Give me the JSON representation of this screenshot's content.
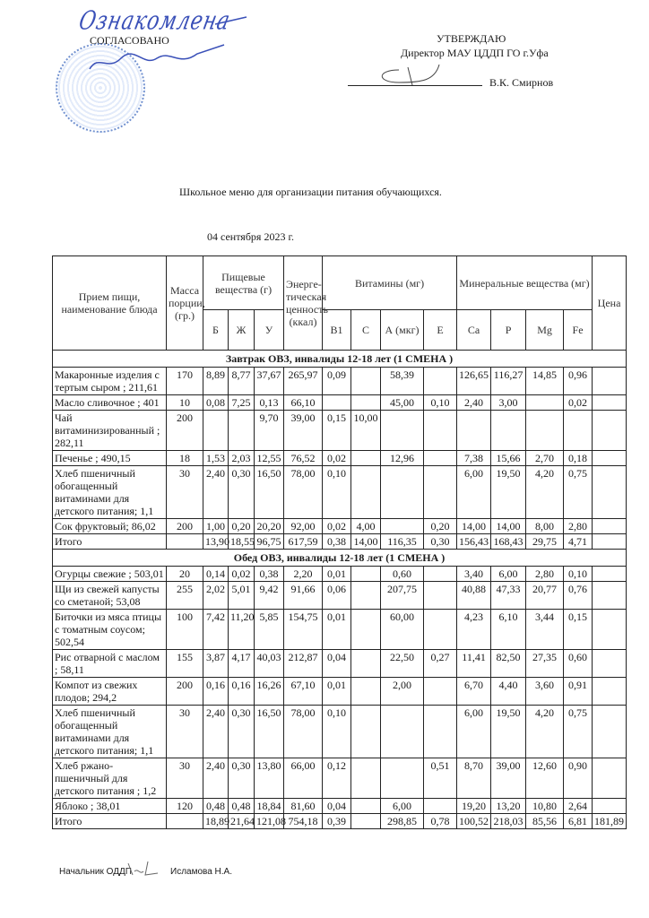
{
  "header": {
    "agreed_label": "СОГЛАСОВАНО",
    "agreed_signature_text": "Ознакомлена",
    "approve_label": "УТВЕРЖДАЮ",
    "approver_position": "Директор МАУ ЦДДП ГО г.Уфа",
    "approver_name": "В.К. Смирнов"
  },
  "title": "Школьное меню для организации питания обучающихся.",
  "date": "04 сентября 2023 г.",
  "table": {
    "headers": {
      "dish": "Прием пищи, наименование блюда",
      "mass": "Масса порции, (гр.)",
      "nutrients": "Пищевые вещества (г)",
      "energy": "Энерге-тическая ценность (ккал)",
      "vitamins": "Витамины (мг)",
      "minerals": "Минеральные вещества (мг)",
      "price": "Цена",
      "sub": [
        "Б",
        "Ж",
        "У",
        "B1",
        "C",
        "А (мкг)",
        "E",
        "Ca",
        "P",
        "Mg",
        "Fe"
      ]
    },
    "sections": [
      {
        "title": "Завтрак ОВЗ, инвалиды 12-18 лет (1 СМЕНА )",
        "rows": [
          [
            "Макаронные изделия с тертым сыром ; 211,61",
            "170",
            "8,89",
            "8,77",
            "37,67",
            "265,97",
            "0,09",
            "",
            "58,39",
            "",
            "126,65",
            "116,27",
            "14,85",
            "0,96",
            ""
          ],
          [
            "Масло сливочное ; 401",
            "10",
            "0,08",
            "7,25",
            "0,13",
            "66,10",
            "",
            "",
            "45,00",
            "0,10",
            "2,40",
            "3,00",
            "",
            "0,02",
            ""
          ],
          [
            "Чай витаминизированный ; 282,11",
            "200",
            "",
            "",
            "9,70",
            "39,00",
            "0,15",
            "10,00",
            "",
            "",
            "",
            "",
            "",
            "",
            ""
          ],
          [
            "Печенье ; 490,15",
            "18",
            "1,53",
            "2,03",
            "12,55",
            "76,52",
            "0,02",
            "",
            "12,96",
            "",
            "7,38",
            "15,66",
            "2,70",
            "0,18",
            ""
          ],
          [
            "Хлеб пшеничный обогащенный витаминами для детского питания; 1,1",
            "30",
            "2,40",
            "0,30",
            "16,50",
            "78,00",
            "0,10",
            "",
            "",
            "",
            "6,00",
            "19,50",
            "4,20",
            "0,75",
            ""
          ],
          [
            "Сок фруктовый; 86,02",
            "200",
            "1,00",
            "0,20",
            "20,20",
            "92,00",
            "0,02",
            "4,00",
            "",
            "0,20",
            "14,00",
            "14,00",
            "8,00",
            "2,80",
            ""
          ],
          [
            "Итого",
            "",
            "13,90",
            "18,55",
            "96,75",
            "617,59",
            "0,38",
            "14,00",
            "116,35",
            "0,30",
            "156,43",
            "168,43",
            "29,75",
            "4,71",
            ""
          ]
        ]
      },
      {
        "title": "Обед ОВЗ, инвалиды 12-18 лет (1 СМЕНА )",
        "rows": [
          [
            "Огурцы свежие ; 503,01",
            "20",
            "0,14",
            "0,02",
            "0,38",
            "2,20",
            "0,01",
            "",
            "0,60",
            "",
            "3,40",
            "6,00",
            "2,80",
            "0,10",
            ""
          ],
          [
            "Щи из свежей капусты со сметаной; 53,08",
            "255",
            "2,02",
            "5,01",
            "9,42",
            "91,66",
            "0,06",
            "",
            "207,75",
            "",
            "40,88",
            "47,33",
            "20,77",
            "0,76",
            ""
          ],
          [
            "Биточки из мяса птицы  с томатным соусом; 502,54",
            "100",
            "7,42",
            "11,20",
            "5,85",
            "154,75",
            "0,01",
            "",
            "60,00",
            "",
            "4,23",
            "6,10",
            "3,44",
            "0,15",
            ""
          ],
          [
            "Рис отварной с маслом ; 58,11",
            "155",
            "3,87",
            "4,17",
            "40,03",
            "212,87",
            "0,04",
            "",
            "22,50",
            "0,27",
            "11,41",
            "82,50",
            "27,35",
            "0,60",
            ""
          ],
          [
            "Компот из свежих плодов; 294,2",
            "200",
            "0,16",
            "0,16",
            "16,26",
            "67,10",
            "0,01",
            "",
            "2,00",
            "",
            "6,70",
            "4,40",
            "3,60",
            "0,91",
            ""
          ],
          [
            "Хлеб пшеничный обогащенный витаминами для детского питания; 1,1",
            "30",
            "2,40",
            "0,30",
            "16,50",
            "78,00",
            "0,10",
            "",
            "",
            "",
            "6,00",
            "19,50",
            "4,20",
            "0,75",
            ""
          ],
          [
            "Хлеб ржано-пшеничный для детского питания ; 1,2",
            "30",
            "2,40",
            "0,30",
            "13,80",
            "66,00",
            "0,12",
            "",
            "",
            "0,51",
            "8,70",
            "39,00",
            "12,60",
            "0,90",
            ""
          ],
          [
            "Яблоко ; 38,01",
            "120",
            "0,48",
            "0,48",
            "18,84",
            "81,60",
            "0,04",
            "",
            "6,00",
            "",
            "19,20",
            "13,20",
            "10,80",
            "2,64",
            ""
          ],
          [
            "Итого",
            "",
            "18,89",
            "21,64",
            "121,08",
            "754,18",
            "0,39",
            "",
            "298,85",
            "0,78",
            "100,52",
            "218,03",
            "85,56",
            "6,81",
            "181,89"
          ]
        ]
      }
    ]
  },
  "footer": {
    "position": "Начальник ОДДП",
    "name": "Исламова Н.А."
  },
  "colors": {
    "ink": "#1a1a1a",
    "signature": "#3a50b8",
    "stamp": "#5a7fc8"
  }
}
